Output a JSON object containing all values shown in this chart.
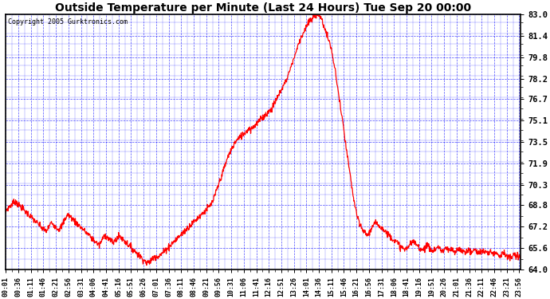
{
  "title": "Outside Temperature per Minute (Last 24 Hours) Tue Sep 20 00:00",
  "copyright": "Copyright 2005 Gurktronics.com",
  "yticks": [
    64.0,
    65.6,
    67.2,
    68.8,
    70.3,
    71.9,
    73.5,
    75.1,
    76.7,
    78.2,
    79.8,
    81.4,
    83.0
  ],
  "ymin": 64.0,
  "ymax": 83.0,
  "line_color": "red",
  "background_color": "white",
  "grid_color": "blue",
  "xtick_labels": [
    "00:01",
    "00:36",
    "01:11",
    "01:46",
    "02:21",
    "02:56",
    "03:31",
    "04:06",
    "04:41",
    "05:16",
    "05:51",
    "06:26",
    "07:01",
    "07:36",
    "08:11",
    "08:46",
    "09:21",
    "09:56",
    "10:31",
    "11:06",
    "11:41",
    "12:16",
    "12:51",
    "13:26",
    "14:01",
    "14:36",
    "15:11",
    "15:46",
    "16:21",
    "16:56",
    "17:31",
    "18:06",
    "18:41",
    "19:16",
    "19:51",
    "20:26",
    "21:01",
    "21:36",
    "22:11",
    "22:46",
    "23:21",
    "23:56"
  ],
  "temp_data": [
    68.3,
    68.5,
    68.6,
    68.7,
    68.8,
    68.9,
    69.0,
    69.1,
    69.0,
    68.9,
    68.8,
    68.7,
    68.6,
    68.5,
    68.4,
    68.3,
    68.2,
    68.1,
    68.0,
    67.9,
    67.8,
    67.7,
    67.6,
    67.5,
    67.4,
    67.3,
    67.2,
    67.1,
    67.0,
    66.9,
    66.9,
    67.0,
    67.2,
    67.4,
    67.5,
    67.4,
    67.3,
    67.2,
    67.1,
    67.0,
    67.1,
    67.2,
    67.4,
    67.6,
    67.8,
    68.0,
    68.1,
    68.0,
    67.9,
    67.8,
    67.7,
    67.6,
    67.5,
    67.4,
    67.3,
    67.2,
    67.1,
    67.0,
    66.9,
    66.8,
    66.7,
    66.6,
    66.5,
    66.4,
    66.3,
    66.2,
    66.1,
    66.0,
    65.9,
    65.8,
    66.0,
    66.2,
    66.4,
    66.6,
    66.5,
    66.4,
    66.3,
    66.2,
    66.1,
    66.0,
    66.1,
    66.2,
    66.3,
    66.4,
    66.5,
    66.4,
    66.3,
    66.2,
    66.1,
    66.0,
    65.9,
    65.8,
    65.7,
    65.6,
    65.5,
    65.4,
    65.3,
    65.2,
    65.1,
    65.0,
    64.9,
    64.8,
    64.7,
    64.6,
    64.5,
    64.5,
    64.6,
    64.7,
    64.8,
    64.9,
    65.0,
    65.0,
    65.0,
    65.0,
    65.1,
    65.2,
    65.3,
    65.4,
    65.5,
    65.6,
    65.7,
    65.8,
    65.9,
    66.0,
    66.1,
    66.2,
    66.3,
    66.4,
    66.5,
    66.6,
    66.7,
    66.8,
    66.9,
    67.0,
    67.1,
    67.2,
    67.3,
    67.4,
    67.5,
    67.6,
    67.7,
    67.8,
    67.9,
    68.0,
    68.1,
    68.2,
    68.3,
    68.4,
    68.5,
    68.6,
    68.7,
    68.8,
    69.0,
    69.2,
    69.5,
    69.8,
    70.1,
    70.4,
    70.7,
    71.0,
    71.3,
    71.6,
    71.9,
    72.2,
    72.5,
    72.7,
    72.9,
    73.1,
    73.3,
    73.5,
    73.6,
    73.7,
    73.8,
    73.9,
    74.0,
    74.1,
    74.2,
    74.3,
    74.4,
    74.5,
    74.5,
    74.5,
    74.6,
    74.7,
    74.8,
    74.9,
    75.0,
    75.1,
    75.2,
    75.3,
    75.4,
    75.5,
    75.6,
    75.7,
    75.8,
    75.9,
    76.0,
    76.2,
    76.4,
    76.6,
    76.8,
    77.0,
    77.2,
    77.4,
    77.6,
    77.8,
    78.0,
    78.2,
    78.5,
    78.8,
    79.1,
    79.4,
    79.7,
    80.0,
    80.3,
    80.6,
    80.9,
    81.2,
    81.4,
    81.6,
    81.8,
    82.0,
    82.2,
    82.4,
    82.5,
    82.6,
    82.7,
    82.8,
    82.9,
    83.0,
    83.0,
    82.9,
    82.7,
    82.5,
    82.2,
    81.9,
    81.6,
    81.3,
    81.0,
    80.7,
    80.2,
    79.7,
    79.1,
    78.5,
    77.8,
    77.1,
    76.4,
    75.7,
    75.0,
    74.3,
    73.5,
    72.8,
    72.1,
    71.4,
    70.7,
    70.0,
    69.4,
    68.8,
    68.3,
    67.8,
    67.5,
    67.3,
    67.1,
    66.9,
    66.8,
    66.7,
    66.6,
    66.7,
    66.8,
    67.0,
    67.2,
    67.3,
    67.4,
    67.5,
    67.4,
    67.3,
    67.2,
    67.1,
    67.0,
    66.9,
    66.8,
    66.7,
    66.6,
    66.5,
    66.4,
    66.3,
    66.2,
    66.1,
    66.0,
    65.9,
    65.8,
    65.7,
    65.6,
    65.5,
    65.5,
    65.6,
    65.7,
    65.8,
    65.9,
    66.0,
    66.1,
    66.0,
    65.9,
    65.8,
    65.7,
    65.6,
    65.5,
    65.5,
    65.6,
    65.7,
    65.8,
    65.7,
    65.6,
    65.5,
    65.4,
    65.4,
    65.5,
    65.6,
    65.7,
    65.6,
    65.5,
    65.4,
    65.4,
    65.5,
    65.6,
    65.5,
    65.4,
    65.4,
    65.5,
    65.4,
    65.3,
    65.3,
    65.4,
    65.5,
    65.6,
    65.5,
    65.4,
    65.3,
    65.3,
    65.4,
    65.5,
    65.4,
    65.3,
    65.3,
    65.4,
    65.5,
    65.4,
    65.3,
    65.3,
    65.4,
    65.3,
    65.3,
    65.4,
    65.3,
    65.2,
    65.2,
    65.3,
    65.4,
    65.3,
    65.2,
    65.2,
    65.3,
    65.2,
    65.1,
    65.1,
    65.2,
    65.3,
    65.2,
    65.1,
    65.0,
    64.9,
    64.8,
    64.9,
    65.0,
    65.1,
    65.0,
    65.0,
    64.9,
    64.9,
    65.0
  ]
}
